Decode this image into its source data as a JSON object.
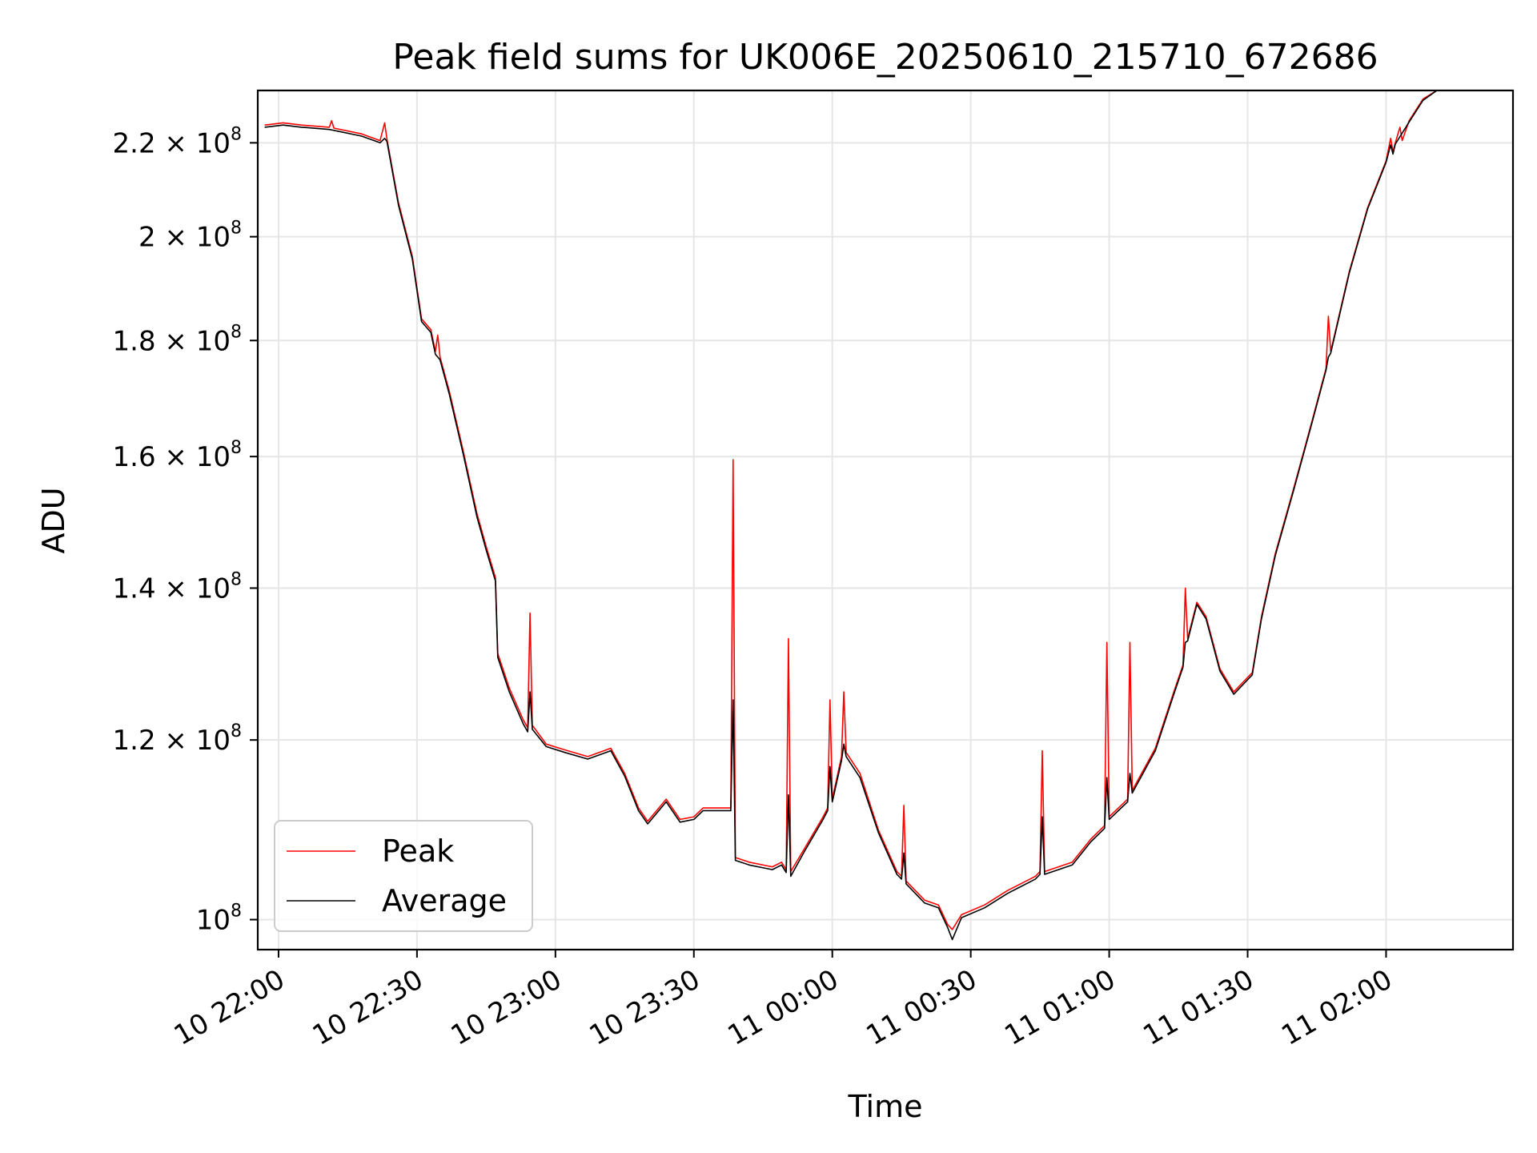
{
  "chart_data": {
    "type": "line",
    "title": "Peak field sums for UK006E_20250610_215710_672686",
    "xlabel": "Time",
    "ylabel": "ADU",
    "y_scale": "log",
    "ylim": [
      97000000,
      232000000
    ],
    "grid": true,
    "legend_position": "lower-left",
    "x_ticks": [
      {
        "value": "2025-06-10 22:00",
        "label": "10 22:00"
      },
      {
        "value": "2025-06-10 22:30",
        "label": "10 22:30"
      },
      {
        "value": "2025-06-10 23:00",
        "label": "10 23:00"
      },
      {
        "value": "2025-06-10 23:30",
        "label": "10 23:30"
      },
      {
        "value": "2025-06-11 00:00",
        "label": "11 00:00"
      },
      {
        "value": "2025-06-11 00:30",
        "label": "11 00:30"
      },
      {
        "value": "2025-06-11 01:00",
        "label": "11 01:00"
      },
      {
        "value": "2025-06-11 01:30",
        "label": "11 01:30"
      },
      {
        "value": "2025-06-11 02:00",
        "label": "11 02:00"
      }
    ],
    "y_ticks": [
      {
        "value": 100000000,
        "mantissa": "",
        "exponent": "8",
        "base": "10"
      },
      {
        "value": 120000000,
        "mantissa": "1.2",
        "exponent": "8",
        "base": "10"
      },
      {
        "value": 140000000,
        "mantissa": "1.4",
        "exponent": "8",
        "base": "10"
      },
      {
        "value": 160000000,
        "mantissa": "1.6",
        "exponent": "8",
        "base": "10"
      },
      {
        "value": 180000000,
        "mantissa": "1.8",
        "exponent": "8",
        "base": "10"
      },
      {
        "value": 200000000,
        "mantissa": "2",
        "exponent": "8",
        "base": "10"
      },
      {
        "value": 220000000,
        "mantissa": "2.2",
        "exponent": "8",
        "base": "10"
      }
    ],
    "series": [
      {
        "name": "Peak",
        "color": "#ff0000",
        "points": [
          [
            "2025-06-10 21:57",
            224000000
          ],
          [
            "2025-06-10 22:01",
            224500000
          ],
          [
            "2025-06-10 22:05",
            224000000
          ],
          [
            "2025-06-10 22:11",
            223500000
          ],
          [
            "2025-06-10 22:11:30",
            225000000
          ],
          [
            "2025-06-10 22:12",
            223300000
          ],
          [
            "2025-06-10 22:18",
            222000000
          ],
          [
            "2025-06-10 22:22",
            220500000
          ],
          [
            "2025-06-10 22:23",
            224500000
          ],
          [
            "2025-06-10 22:23:30",
            220800000
          ],
          [
            "2025-06-10 22:26",
            207000000
          ],
          [
            "2025-06-10 22:29",
            196000000
          ],
          [
            "2025-06-10 22:31",
            184000000
          ],
          [
            "2025-06-10 22:33",
            182000000
          ],
          [
            "2025-06-10 22:34",
            178000000
          ],
          [
            "2025-06-10 22:34:30",
            181000000
          ],
          [
            "2025-06-10 22:35",
            177000000
          ],
          [
            "2025-06-10 22:37",
            171000000
          ],
          [
            "2025-06-10 22:40",
            161000000
          ],
          [
            "2025-06-10 22:43",
            151000000
          ],
          [
            "2025-06-10 22:45",
            146000000
          ],
          [
            "2025-06-10 22:47",
            141500000
          ],
          [
            "2025-06-10 22:47:30",
            131000000
          ],
          [
            "2025-06-10 22:50",
            126500000
          ],
          [
            "2025-06-10 22:53",
            122500000
          ],
          [
            "2025-06-10 22:54",
            121500000
          ],
          [
            "2025-06-10 22:54:30",
            136500000
          ],
          [
            "2025-06-10 22:55",
            121800000
          ],
          [
            "2025-06-10 22:58",
            119500000
          ],
          [
            "2025-06-10 23:02",
            118800000
          ],
          [
            "2025-06-10 23:07",
            118000000
          ],
          [
            "2025-06-10 23:12",
            119000000
          ],
          [
            "2025-06-10 23:15",
            116000000
          ],
          [
            "2025-06-10 23:18",
            112000000
          ],
          [
            "2025-06-10 23:20",
            110500000
          ],
          [
            "2025-06-10 23:24",
            113000000
          ],
          [
            "2025-06-10 23:27",
            110700000
          ],
          [
            "2025-06-10 23:30",
            111000000
          ],
          [
            "2025-06-10 23:32",
            112000000
          ],
          [
            "2025-06-10 23:38",
            112000000
          ],
          [
            "2025-06-10 23:38:30",
            159500000
          ],
          [
            "2025-06-10 23:39",
            106500000
          ],
          [
            "2025-06-10 23:42",
            106000000
          ],
          [
            "2025-06-10 23:47",
            105500000
          ],
          [
            "2025-06-10 23:49",
            106000000
          ],
          [
            "2025-06-10 23:50",
            105200000
          ],
          [
            "2025-06-10 23:50:30",
            133000000
          ],
          [
            "2025-06-10 23:51",
            105000000
          ],
          [
            "2025-06-10 23:54",
            107500000
          ],
          [
            "2025-06-10 23:58",
            111000000
          ],
          [
            "2025-06-10 23:59",
            112000000
          ],
          [
            "2025-06-10 23:59:30",
            125000000
          ],
          [
            "2025-06-11 00:00",
            113000000
          ],
          [
            "2025-06-11 00:02",
            118000000
          ],
          [
            "2025-06-11 00:02:30",
            126000000
          ],
          [
            "2025-06-11 00:03",
            118500000
          ],
          [
            "2025-06-11 00:06",
            116000000
          ],
          [
            "2025-06-11 00:10",
            109500000
          ],
          [
            "2025-06-11 00:14",
            105000000
          ],
          [
            "2025-06-11 00:15",
            104500000
          ],
          [
            "2025-06-11 00:15:30",
            112300000
          ],
          [
            "2025-06-11 00:16",
            104000000
          ],
          [
            "2025-06-11 00:20",
            102000000
          ],
          [
            "2025-06-11 00:23",
            101500000
          ],
          [
            "2025-06-11 00:25",
            99500000
          ],
          [
            "2025-06-11 00:26",
            99000000
          ],
          [
            "2025-06-11 00:28",
            100500000
          ],
          [
            "2025-06-11 00:33",
            101500000
          ],
          [
            "2025-06-11 00:38",
            103000000
          ],
          [
            "2025-06-11 00:44",
            104500000
          ],
          [
            "2025-06-11 00:45",
            105000000
          ],
          [
            "2025-06-11 00:45:30",
            118700000
          ],
          [
            "2025-06-11 00:46",
            105000000
          ],
          [
            "2025-06-11 00:52",
            106000000
          ],
          [
            "2025-06-11 00:56",
            108500000
          ],
          [
            "2025-06-11 00:59",
            110000000
          ],
          [
            "2025-06-11 00:59:30",
            132500000
          ],
          [
            "2025-06-11 01:00",
            111000000
          ],
          [
            "2025-06-11 01:04",
            113000000
          ],
          [
            "2025-06-11 01:04:30",
            132500000
          ],
          [
            "2025-06-11 01:05",
            114000000
          ],
          [
            "2025-06-11 01:10",
            119000000
          ],
          [
            "2025-06-11 01:14",
            126000000
          ],
          [
            "2025-06-11 01:16",
            129500000
          ],
          [
            "2025-06-11 01:16:30",
            140000000
          ],
          [
            "2025-06-11 01:17",
            133000000
          ],
          [
            "2025-06-11 01:19",
            138000000
          ],
          [
            "2025-06-11 01:21",
            136000000
          ],
          [
            "2025-06-11 01:24",
            129000000
          ],
          [
            "2025-06-11 01:27",
            126000000
          ],
          [
            "2025-06-11 01:31",
            128500000
          ],
          [
            "2025-06-11 01:33",
            136000000
          ],
          [
            "2025-06-11 01:36",
            145000000
          ],
          [
            "2025-06-11 01:40",
            155000000
          ],
          [
            "2025-06-11 01:44",
            166000000
          ],
          [
            "2025-06-11 01:47",
            175000000
          ],
          [
            "2025-06-11 01:47:30",
            184500000
          ],
          [
            "2025-06-11 01:48",
            178000000
          ],
          [
            "2025-06-11 01:52",
            193000000
          ],
          [
            "2025-06-11 01:56",
            206000000
          ],
          [
            "2025-06-11 02:00",
            216000000
          ],
          [
            "2025-06-11 02:01",
            221000000
          ],
          [
            "2025-06-11 02:01:30",
            218000000
          ],
          [
            "2025-06-11 02:02",
            220000000
          ],
          [
            "2025-06-11 02:03",
            223500000
          ],
          [
            "2025-06-11 02:03:30",
            220500000
          ],
          [
            "2025-06-11 02:05",
            225000000
          ],
          [
            "2025-06-11 02:08",
            230000000
          ],
          [
            "2025-06-11 02:11",
            232000000
          ],
          [
            "2025-06-11 02:16",
            232000000
          ]
        ]
      },
      {
        "name": "Average",
        "color": "#000000",
        "points": [
          [
            "2025-06-10 21:57",
            223500000
          ],
          [
            "2025-06-10 22:01",
            224000000
          ],
          [
            "2025-06-10 22:05",
            223500000
          ],
          [
            "2025-06-10 22:11",
            223000000
          ],
          [
            "2025-06-10 22:12",
            222800000
          ],
          [
            "2025-06-10 22:18",
            221500000
          ],
          [
            "2025-06-10 22:22",
            220000000
          ],
          [
            "2025-06-10 22:23",
            221000000
          ],
          [
            "2025-06-10 22:23:30",
            220300000
          ],
          [
            "2025-06-10 22:26",
            206500000
          ],
          [
            "2025-06-10 22:29",
            195500000
          ],
          [
            "2025-06-10 22:31",
            183500000
          ],
          [
            "2025-06-10 22:33",
            181500000
          ],
          [
            "2025-06-10 22:34",
            177500000
          ],
          [
            "2025-06-10 22:35",
            176500000
          ],
          [
            "2025-06-10 22:37",
            170500000
          ],
          [
            "2025-06-10 22:40",
            160500000
          ],
          [
            "2025-06-10 22:43",
            150500000
          ],
          [
            "2025-06-10 22:45",
            145500000
          ],
          [
            "2025-06-10 22:47",
            141000000
          ],
          [
            "2025-06-10 22:47:30",
            130500000
          ],
          [
            "2025-06-10 22:50",
            126000000
          ],
          [
            "2025-06-10 22:53",
            122000000
          ],
          [
            "2025-06-10 22:54",
            121000000
          ],
          [
            "2025-06-10 22:54:30",
            126000000
          ],
          [
            "2025-06-10 22:55",
            121300000
          ],
          [
            "2025-06-10 22:58",
            119200000
          ],
          [
            "2025-06-10 23:02",
            118500000
          ],
          [
            "2025-06-10 23:07",
            117700000
          ],
          [
            "2025-06-10 23:12",
            118700000
          ],
          [
            "2025-06-10 23:15",
            115700000
          ],
          [
            "2025-06-10 23:18",
            111700000
          ],
          [
            "2025-06-10 23:20",
            110200000
          ],
          [
            "2025-06-10 23:24",
            112700000
          ],
          [
            "2025-06-10 23:27",
            110400000
          ],
          [
            "2025-06-10 23:30",
            110700000
          ],
          [
            "2025-06-10 23:32",
            111700000
          ],
          [
            "2025-06-10 23:38",
            111700000
          ],
          [
            "2025-06-10 23:38:30",
            125000000
          ],
          [
            "2025-06-10 23:39",
            106200000
          ],
          [
            "2025-06-10 23:42",
            105700000
          ],
          [
            "2025-06-10 23:47",
            105200000
          ],
          [
            "2025-06-10 23:49",
            105700000
          ],
          [
            "2025-06-10 23:50",
            104900000
          ],
          [
            "2025-06-10 23:50:30",
            113500000
          ],
          [
            "2025-06-10 23:51",
            104500000
          ],
          [
            "2025-06-10 23:54",
            107200000
          ],
          [
            "2025-06-10 23:58",
            110700000
          ],
          [
            "2025-06-10 23:59",
            111700000
          ],
          [
            "2025-06-10 23:59:30",
            116800000
          ],
          [
            "2025-06-11 00:00",
            112700000
          ],
          [
            "2025-06-11 00:02",
            117500000
          ],
          [
            "2025-06-11 00:02:30",
            119500000
          ],
          [
            "2025-06-11 00:03",
            118000000
          ],
          [
            "2025-06-11 00:06",
            115500000
          ],
          [
            "2025-06-11 00:10",
            109200000
          ],
          [
            "2025-06-11 00:14",
            104700000
          ],
          [
            "2025-06-11 00:15",
            104200000
          ],
          [
            "2025-06-11 00:15:30",
            107000000
          ],
          [
            "2025-06-11 00:16",
            103700000
          ],
          [
            "2025-06-11 00:20",
            101700000
          ],
          [
            "2025-06-11 00:23",
            101200000
          ],
          [
            "2025-06-11 00:25",
            99200000
          ],
          [
            "2025-06-11 00:26",
            98000000
          ],
          [
            "2025-06-11 00:28",
            100200000
          ],
          [
            "2025-06-11 00:33",
            101200000
          ],
          [
            "2025-06-11 00:38",
            102700000
          ],
          [
            "2025-06-11 00:44",
            104200000
          ],
          [
            "2025-06-11 00:45",
            104700000
          ],
          [
            "2025-06-11 00:45:30",
            111000000
          ],
          [
            "2025-06-11 00:46",
            104700000
          ],
          [
            "2025-06-11 00:52",
            105700000
          ],
          [
            "2025-06-11 00:56",
            108200000
          ],
          [
            "2025-06-11 00:59",
            109700000
          ],
          [
            "2025-06-11 00:59:30",
            115500000
          ],
          [
            "2025-06-11 01:00",
            110700000
          ],
          [
            "2025-06-11 01:04",
            112700000
          ],
          [
            "2025-06-11 01:04:30",
            116000000
          ],
          [
            "2025-06-11 01:05",
            113700000
          ],
          [
            "2025-06-11 01:10",
            118700000
          ],
          [
            "2025-06-11 01:14",
            125700000
          ],
          [
            "2025-06-11 01:16",
            129200000
          ],
          [
            "2025-06-11 01:16:30",
            132500000
          ],
          [
            "2025-06-11 01:17",
            132700000
          ],
          [
            "2025-06-11 01:19",
            137700000
          ],
          [
            "2025-06-11 01:21",
            135700000
          ],
          [
            "2025-06-11 01:24",
            128700000
          ],
          [
            "2025-06-11 01:27",
            125700000
          ],
          [
            "2025-06-11 01:31",
            128200000
          ],
          [
            "2025-06-11 01:33",
            135700000
          ],
          [
            "2025-06-11 01:36",
            144700000
          ],
          [
            "2025-06-11 01:40",
            154700000
          ],
          [
            "2025-06-11 01:44",
            165700000
          ],
          [
            "2025-06-11 01:47",
            174700000
          ],
          [
            "2025-06-11 01:47:30",
            177000000
          ],
          [
            "2025-06-11 01:48",
            177700000
          ],
          [
            "2025-06-11 01:52",
            192700000
          ],
          [
            "2025-06-11 01:56",
            205700000
          ],
          [
            "2025-06-11 02:00",
            215700000
          ],
          [
            "2025-06-11 02:01",
            219500000
          ],
          [
            "2025-06-11 02:01:30",
            217500000
          ],
          [
            "2025-06-11 02:02",
            219700000
          ],
          [
            "2025-06-11 02:05",
            224700000
          ],
          [
            "2025-06-11 02:08",
            229700000
          ],
          [
            "2025-06-11 02:11",
            232000000
          ],
          [
            "2025-06-11 02:16",
            232000000
          ]
        ]
      }
    ]
  }
}
